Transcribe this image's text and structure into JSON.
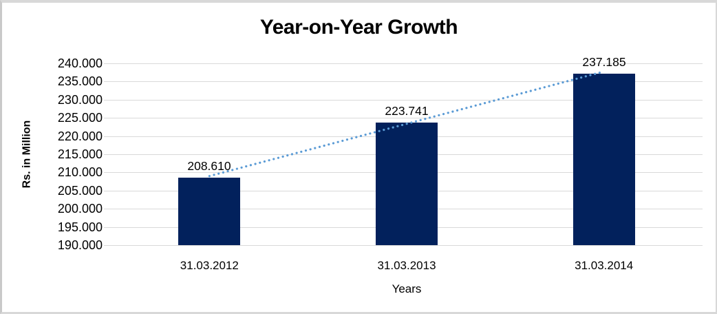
{
  "chart_data": {
    "type": "bar",
    "title": "Year-on-Year Growth",
    "xlabel": "Years",
    "ylabel": "Rs. in Million",
    "categories": [
      "31.03.2012",
      "31.03.2013",
      "31.03.2014"
    ],
    "values": [
      208.61,
      223.741,
      237.185
    ],
    "data_labels": [
      "208.610",
      "223.741",
      "237.185"
    ],
    "ylim": [
      190,
      240
    ],
    "ytick_step": 5,
    "ytick_labels": [
      "240.000",
      "235.000",
      "230.000",
      "225.000",
      "220.000",
      "215.000",
      "210.000",
      "205.000",
      "200.000",
      "195.000",
      "190.000"
    ],
    "grid": true,
    "legend": false,
    "trendline": true,
    "colors": {
      "bar": "#02215c",
      "trendline": "#5b9bd5",
      "gridline": "#d9d9d9",
      "text": "#000000",
      "frame_border": "#d8d8d8",
      "background": "#ffffff"
    }
  }
}
